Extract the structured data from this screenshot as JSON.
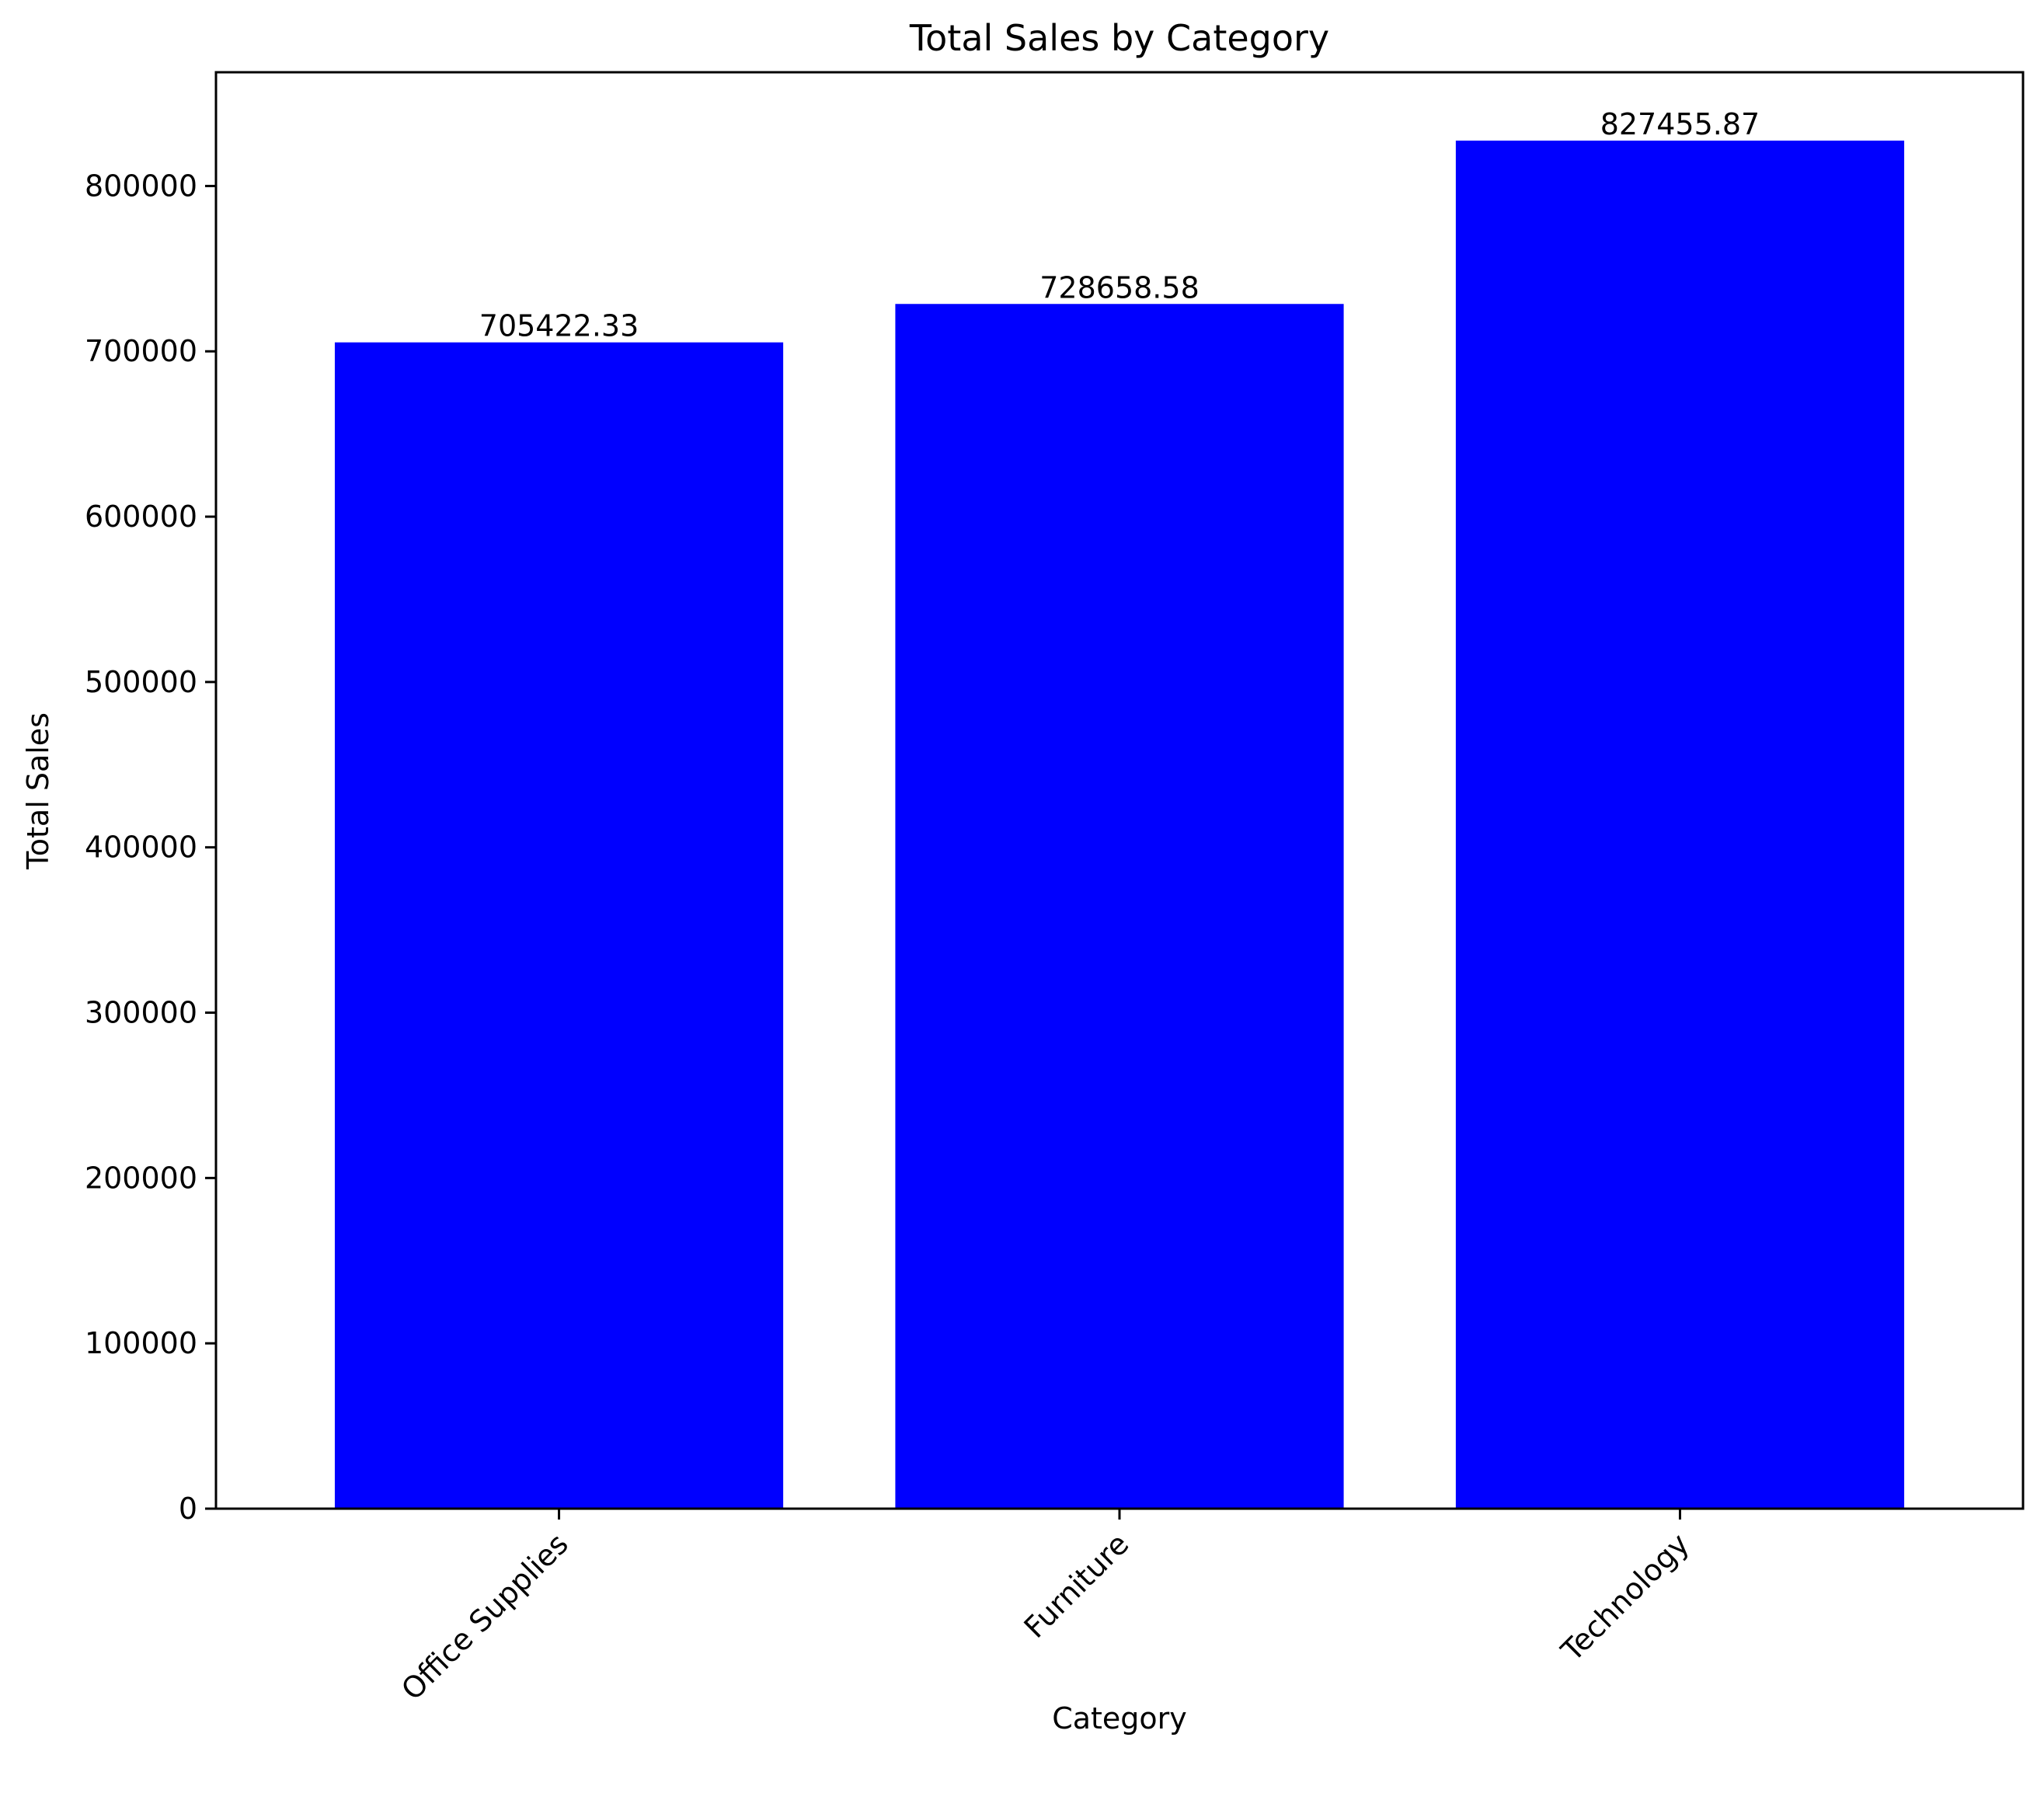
{
  "chart_data": {
    "type": "bar",
    "title": "Total Sales by Category",
    "xlabel": "Category",
    "ylabel": "Total Sales",
    "categories": [
      "Office Supplies",
      "Furniture",
      "Technology"
    ],
    "values": [
      705422.33,
      728658.58,
      827455.87
    ],
    "value_labels": [
      "705422.33",
      "728658.58",
      "827455.87"
    ],
    "yticks": [
      0,
      100000,
      200000,
      300000,
      400000,
      500000,
      600000,
      700000,
      800000
    ],
    "ytick_labels": [
      "0",
      "100000",
      "200000",
      "300000",
      "400000",
      "500000",
      "600000",
      "700000",
      "800000"
    ],
    "ylim": [
      0,
      868800
    ],
    "grid": false,
    "bar_color": "#0000ff"
  }
}
